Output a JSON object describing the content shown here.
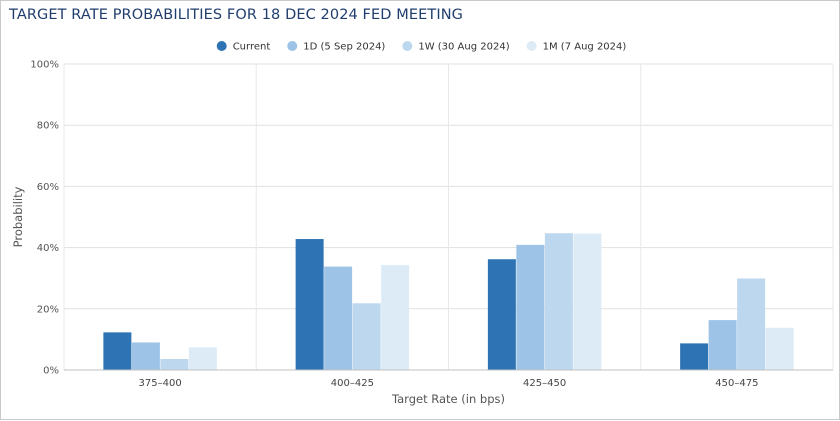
{
  "title": "TARGET RATE PROBABILITIES FOR 18 DEC 2024 FED MEETING",
  "chart_data": {
    "type": "bar",
    "title": "TARGET RATE PROBABILITIES FOR 18 DEC 2024 FED MEETING",
    "xlabel": "Target Rate (in bps)",
    "ylabel": "Probability",
    "categories": [
      "375-400",
      "400-425",
      "425-450",
      "450-475"
    ],
    "yticks": [
      "0%",
      "20%",
      "40%",
      "60%",
      "80%",
      "100%"
    ],
    "ylim": [
      0,
      100
    ],
    "grid": true,
    "legend_position": "top-center",
    "series": [
      {
        "name": "Current",
        "color": "#2e74b5",
        "values": [
          12.3,
          42.8,
          36.2,
          8.7
        ]
      },
      {
        "name": "1D (5 Sep 2024)",
        "color": "#9dc3e6",
        "values": [
          9.0,
          33.8,
          40.9,
          16.3
        ]
      },
      {
        "name": "1W (30 Aug 2024)",
        "color": "#bdd7ee",
        "values": [
          3.6,
          21.8,
          44.7,
          29.9
        ]
      },
      {
        "name": "1M (7 Aug 2024)",
        "color": "#ddebf7",
        "values": [
          7.4,
          34.3,
          44.6,
          13.8
        ]
      }
    ]
  }
}
